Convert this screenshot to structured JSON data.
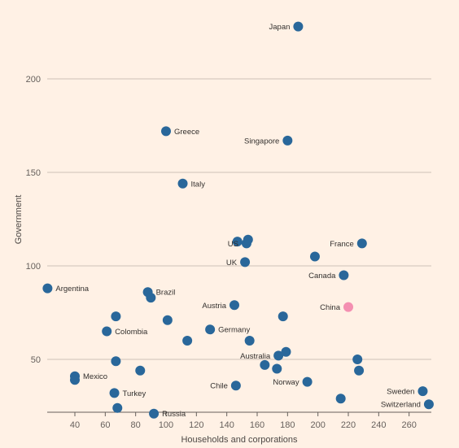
{
  "chart_data": {
    "type": "scatter",
    "xlabel": "Households and corporations",
    "ylabel": "Government",
    "xlim": [
      20,
      275
    ],
    "ylim": [
      20,
      235
    ],
    "xticks": [
      40,
      60,
      80,
      100,
      120,
      140,
      160,
      180,
      200,
      220,
      240,
      260
    ],
    "yticks": [
      50,
      100,
      150,
      200
    ],
    "grid": true,
    "colors": {
      "default": "#29679a",
      "highlight": "#f48fb1"
    },
    "points": [
      {
        "label": "Japan",
        "x": 187,
        "y": 228,
        "label_side": "left"
      },
      {
        "label": "Greece",
        "x": 100,
        "y": 172,
        "label_side": "right"
      },
      {
        "label": "Singapore",
        "x": 180,
        "y": 167,
        "label_side": "left"
      },
      {
        "label": "Italy",
        "x": 111,
        "y": 144,
        "label_side": "right"
      },
      {
        "label": "",
        "x": 147,
        "y": 113
      },
      {
        "label": "US",
        "x": 153,
        "y": 112,
        "label_side": "left"
      },
      {
        "label": "",
        "x": 154,
        "y": 114
      },
      {
        "label": "France",
        "x": 229,
        "y": 112,
        "label_side": "left"
      },
      {
        "label": "UK",
        "x": 152,
        "y": 102,
        "label_side": "left"
      },
      {
        "label": "",
        "x": 198,
        "y": 105
      },
      {
        "label": "Canada",
        "x": 217,
        "y": 95,
        "label_side": "left"
      },
      {
        "label": "Argentina",
        "x": 22,
        "y": 88,
        "label_side": "right"
      },
      {
        "label": "Brazil",
        "x": 88,
        "y": 86,
        "label_side": "right"
      },
      {
        "label": "",
        "x": 90,
        "y": 83
      },
      {
        "label": "Austria",
        "x": 145,
        "y": 79,
        "label_side": "left"
      },
      {
        "label": "China",
        "x": 220,
        "y": 78,
        "label_side": "left",
        "highlight": true
      },
      {
        "label": "",
        "x": 67,
        "y": 73
      },
      {
        "label": "",
        "x": 177,
        "y": 73
      },
      {
        "label": "",
        "x": 101,
        "y": 71
      },
      {
        "label": "Germany",
        "x": 129,
        "y": 66,
        "label_side": "right"
      },
      {
        "label": "Colombia",
        "x": 61,
        "y": 65,
        "label_side": "right"
      },
      {
        "label": "",
        "x": 155,
        "y": 60
      },
      {
        "label": "",
        "x": 114,
        "y": 60
      },
      {
        "label": "Australia",
        "x": 174,
        "y": 52,
        "label_side": "left"
      },
      {
        "label": "",
        "x": 179,
        "y": 54
      },
      {
        "label": "",
        "x": 67,
        "y": 49
      },
      {
        "label": "",
        "x": 226,
        "y": 50
      },
      {
        "label": "",
        "x": 165,
        "y": 47
      },
      {
        "label": "",
        "x": 173,
        "y": 45
      },
      {
        "label": "",
        "x": 227,
        "y": 44
      },
      {
        "label": "",
        "x": 83,
        "y": 44
      },
      {
        "label": "Mexico",
        "x": 40,
        "y": 41,
        "label_side": "right"
      },
      {
        "label": "",
        "x": 40,
        "y": 39
      },
      {
        "label": "Norway",
        "x": 193,
        "y": 38,
        "label_side": "left"
      },
      {
        "label": "Chile",
        "x": 146,
        "y": 36,
        "label_side": "left"
      },
      {
        "label": "Turkey",
        "x": 66,
        "y": 32,
        "label_side": "right"
      },
      {
        "label": "Sweden",
        "x": 269,
        "y": 33,
        "label_side": "left"
      },
      {
        "label": "",
        "x": 215,
        "y": 29
      },
      {
        "label": "Switzerland",
        "x": 273,
        "y": 26,
        "label_side": "left"
      },
      {
        "label": "",
        "x": 68,
        "y": 24
      },
      {
        "label": "Russia",
        "x": 92,
        "y": 21,
        "label_side": "right"
      }
    ]
  }
}
